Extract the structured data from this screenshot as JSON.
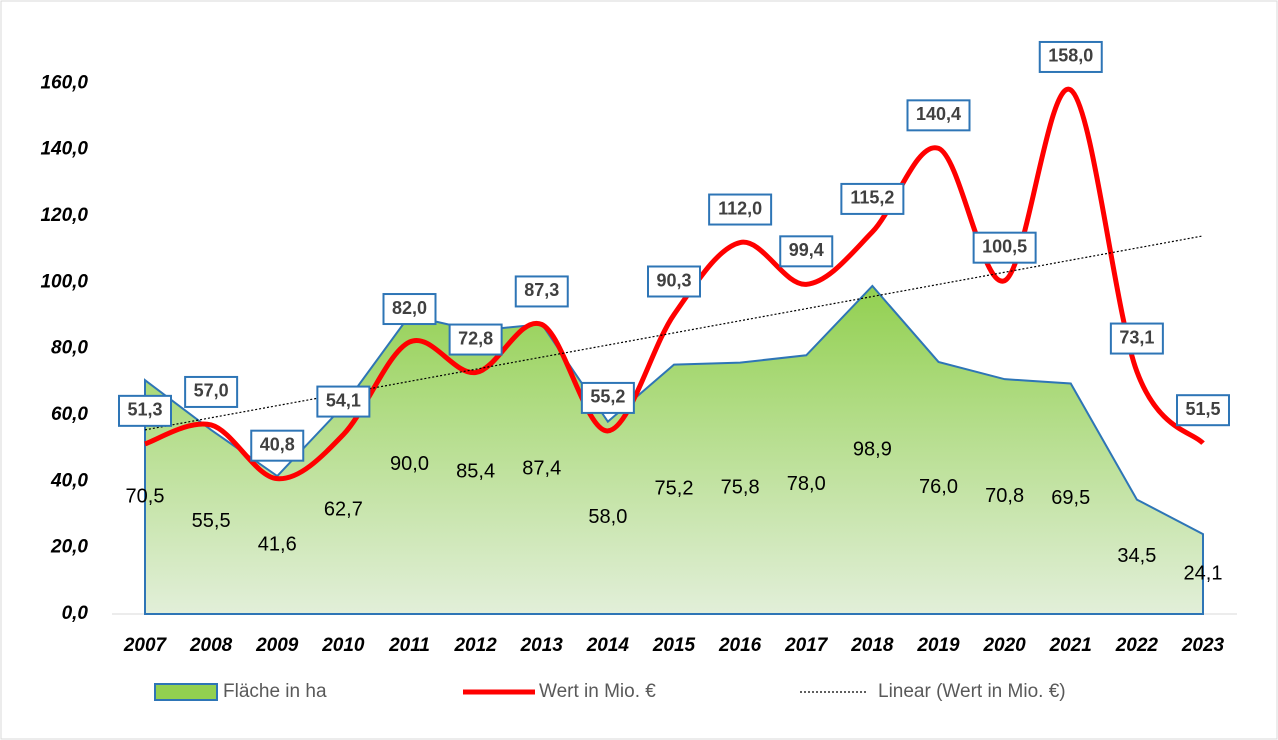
{
  "chart_data": {
    "type": "area-line",
    "categories": [
      "2007",
      "2008",
      "2009",
      "2010",
      "2011",
      "2012",
      "2013",
      "2014",
      "2015",
      "2016",
      "2017",
      "2018",
      "2019",
      "2020",
      "2021",
      "2022",
      "2023"
    ],
    "ylim": [
      0,
      180
    ],
    "yticks": [
      {
        "value": 0,
        "label": "0,0"
      },
      {
        "value": 20,
        "label": "20,0"
      },
      {
        "value": 40,
        "label": "40,0"
      },
      {
        "value": 60,
        "label": "60,0"
      },
      {
        "value": 80,
        "label": "80,0"
      },
      {
        "value": 100,
        "label": "100,0"
      },
      {
        "value": 120,
        "label": "120,0"
      },
      {
        "value": 140,
        "label": "140,0"
      },
      {
        "value": 160,
        "label": "160,0"
      }
    ],
    "grid": false,
    "legend": "bottom",
    "series": [
      {
        "name": "Fläche in ha",
        "type": "area",
        "color": "#92d050",
        "edge": "#2e75b6",
        "values": [
          70.5,
          55.5,
          41.6,
          62.7,
          90.0,
          85.4,
          87.4,
          58.0,
          75.2,
          75.8,
          78.0,
          98.9,
          76.0,
          70.8,
          69.5,
          34.5,
          24.1
        ],
        "value_labels": [
          "70,5",
          "55,5",
          "41,6",
          "62,7",
          "90,0",
          "85,4",
          "87,4",
          "58,0",
          "75,2",
          "75,8",
          "78,0",
          "98,9",
          "76,0",
          "70,8",
          "69,5",
          "34,5",
          "24,1"
        ]
      },
      {
        "name": "Wert in Mio. €",
        "type": "line",
        "color": "#ff0000",
        "values": [
          51.3,
          57.0,
          40.8,
          54.1,
          82.0,
          72.8,
          87.3,
          55.2,
          90.3,
          112.0,
          99.4,
          115.2,
          140.4,
          100.5,
          158.0,
          73.1,
          51.5
        ],
        "value_labels": [
          "51,3",
          "57,0",
          "40,8",
          "54,1",
          "82,0",
          "72,8",
          "87,3",
          "55,2",
          "90,3",
          "112,0",
          "99,4",
          "115,2",
          "140,4",
          "100,5",
          "158,0",
          "73,1",
          "51,5"
        ]
      }
    ],
    "trendline": {
      "name": "Linear (Wert in Mio. €)",
      "of": 1,
      "color": "#000000"
    }
  }
}
